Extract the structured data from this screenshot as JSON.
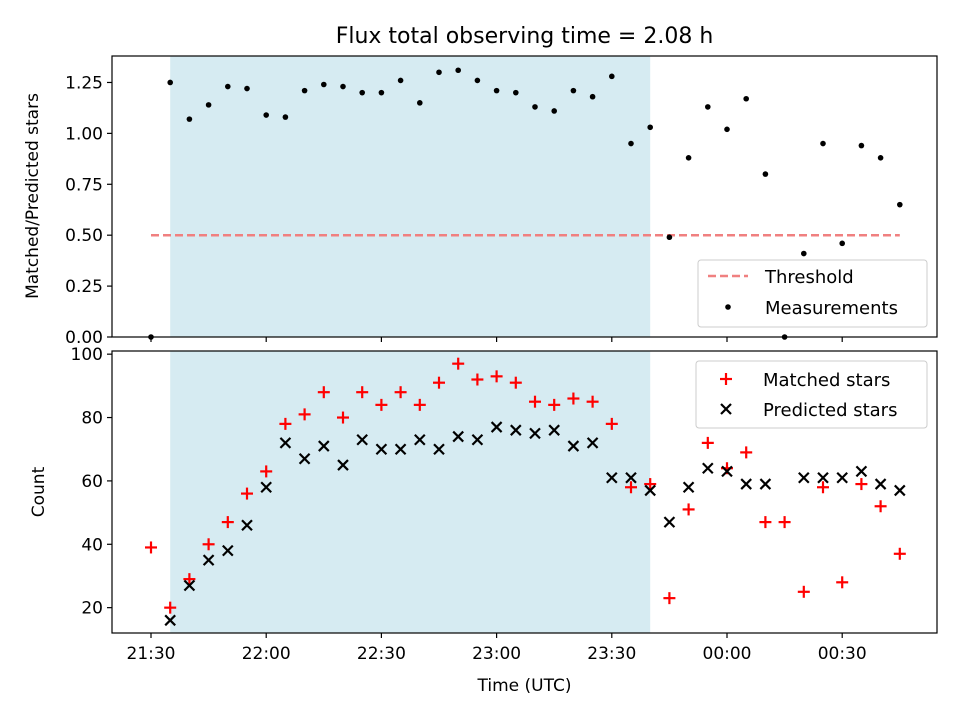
{
  "chart_data": [
    {
      "type": "scatter",
      "title": "Flux total observing time = 2.08 h",
      "ylabel": "Matched/Predicted stars",
      "xlabel": "",
      "ylim": [
        0,
        1.38
      ],
      "yticks": [
        0,
        0.25,
        0.5,
        0.75,
        1.0,
        1.25
      ],
      "ytick_labels": [
        "0.00",
        "0.25",
        "0.50",
        "0.75",
        "1.00",
        "1.25"
      ],
      "threshold": 0.5,
      "legend_location": "lower-right",
      "legend": [
        "Threshold",
        "Measurements"
      ],
      "colors": {
        "threshold": "#f08080",
        "measurements": "#000000",
        "shade": "#add8e6"
      },
      "series": [
        {
          "name": "Measurements",
          "x": [
            "21:30",
            "21:35",
            "21:40",
            "21:45",
            "21:50",
            "21:55",
            "22:00",
            "22:05",
            "22:10",
            "22:15",
            "22:20",
            "22:25",
            "22:30",
            "22:35",
            "22:40",
            "22:45",
            "22:50",
            "22:55",
            "23:00",
            "23:05",
            "23:10",
            "23:15",
            "23:20",
            "23:25",
            "23:30",
            "23:35",
            "23:40",
            "23:45",
            "23:50",
            "23:55",
            "00:00",
            "00:05",
            "00:10",
            "00:15",
            "00:20",
            "00:25",
            "00:30",
            "00:35",
            "00:40",
            "00:45"
          ],
          "values": [
            0.0,
            1.25,
            1.07,
            1.14,
            1.23,
            1.22,
            1.09,
            1.08,
            1.21,
            1.24,
            1.23,
            1.2,
            1.2,
            1.26,
            1.15,
            1.3,
            1.31,
            1.26,
            1.21,
            1.2,
            1.13,
            1.11,
            1.21,
            1.18,
            1.28,
            0.95,
            1.03,
            0.49,
            0.88,
            1.13,
            1.02,
            1.17,
            0.8,
            0.0,
            0.41,
            0.95,
            0.46,
            0.94,
            0.88,
            0.65
          ]
        }
      ]
    },
    {
      "type": "scatter",
      "title": "",
      "ylabel": "Count",
      "xlabel": "Time (UTC)",
      "ylim": [
        12,
        101
      ],
      "yticks": [
        20,
        40,
        60,
        80,
        100
      ],
      "ytick_labels": [
        "20",
        "40",
        "60",
        "80",
        "100"
      ],
      "xticks": [
        "21:30",
        "22:00",
        "22:30",
        "23:00",
        "23:30",
        "00:00",
        "00:30"
      ],
      "legend_location": "upper-right",
      "legend": [
        "Matched stars",
        "Predicted stars"
      ],
      "colors": {
        "matched": "#ff0000",
        "predicted": "#000000",
        "shade": "#add8e6"
      },
      "shaded_interval": [
        "21:35",
        "23:40"
      ],
      "x": [
        "21:30",
        "21:35",
        "21:40",
        "21:45",
        "21:50",
        "21:55",
        "22:00",
        "22:05",
        "22:10",
        "22:15",
        "22:20",
        "22:25",
        "22:30",
        "22:35",
        "22:40",
        "22:45",
        "22:50",
        "22:55",
        "23:00",
        "23:05",
        "23:10",
        "23:15",
        "23:20",
        "23:25",
        "23:30",
        "23:35",
        "23:40",
        "23:45",
        "23:50",
        "23:55",
        "00:00",
        "00:05",
        "00:10",
        "00:15",
        "00:20",
        "00:25",
        "00:30",
        "00:35",
        "00:40",
        "00:45"
      ],
      "series": [
        {
          "name": "Matched stars",
          "values": [
            39,
            20,
            29,
            40,
            47,
            56,
            63,
            78,
            81,
            88,
            80,
            88,
            84,
            88,
            84,
            91,
            97,
            92,
            93,
            91,
            85,
            84,
            86,
            85,
            78,
            58,
            59,
            23,
            51,
            72,
            64,
            69,
            47,
            47,
            25,
            58,
            28,
            59,
            52,
            37
          ]
        },
        {
          "name": "Predicted stars",
          "values": [
            null,
            16,
            27,
            35,
            38,
            46,
            58,
            72,
            67,
            71,
            65,
            73,
            70,
            70,
            73,
            70,
            74,
            73,
            77,
            76,
            75,
            76,
            71,
            72,
            61,
            61,
            57,
            47,
            58,
            64,
            63,
            59,
            59,
            null,
            61,
            61,
            61,
            63,
            59,
            57
          ]
        }
      ]
    }
  ]
}
